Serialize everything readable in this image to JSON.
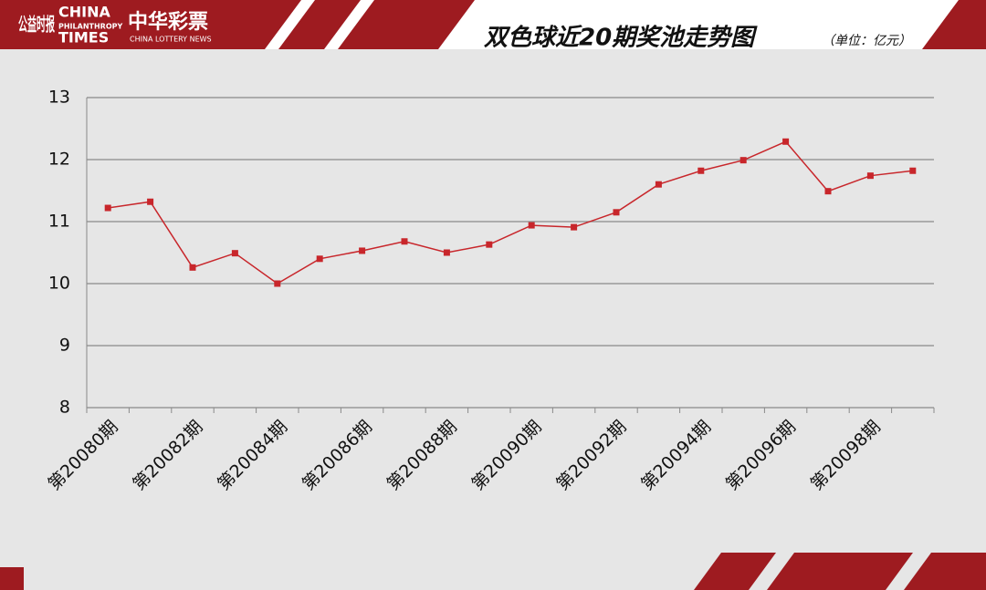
{
  "brand": {
    "logo_cn": "公益时报",
    "logo_en": "CHINA",
    "logo_en_sub": "PHILANTHROPY",
    "logo_en_sub2": "TIMES",
    "lottery_cn": "中华彩票",
    "lottery_en": "CHINA LOTTERY NEWS"
  },
  "chart_data": {
    "type": "line",
    "title": "双色球近20期奖池走势图",
    "subtitle": "（单位：亿元）",
    "categories": [
      "第20080期",
      null,
      "第20082期",
      null,
      "第20084期",
      null,
      "第20086期",
      null,
      "第20088期",
      null,
      "第20090期",
      null,
      "第20092期",
      null,
      "第20094期",
      null,
      "第20096期",
      null,
      "第20098期",
      null
    ],
    "series": [
      {
        "color": "#c8262b",
        "values": [
          11.22,
          11.32,
          10.26,
          10.49,
          10.0,
          10.4,
          10.53,
          10.68,
          10.5,
          10.63,
          10.94,
          10.91,
          11.15,
          11.6,
          11.82,
          11.99,
          12.29,
          11.49,
          11.74,
          11.82
        ]
      }
    ],
    "ylim": [
      8,
      13
    ],
    "yticks": [
      8,
      9,
      10,
      11,
      12,
      13
    ],
    "grid": true
  }
}
